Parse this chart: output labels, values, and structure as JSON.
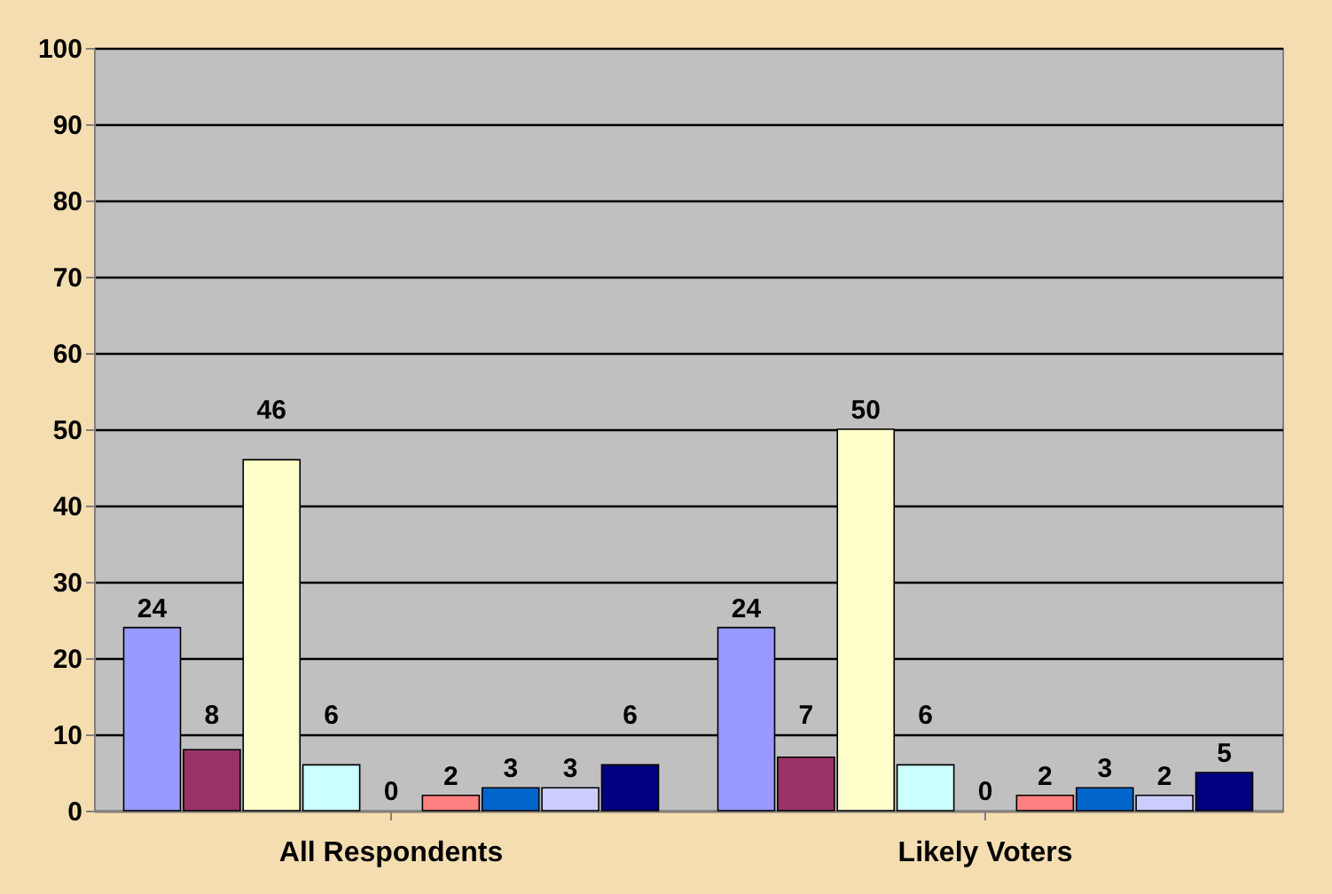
{
  "chart_data": {
    "type": "bar",
    "categories": [
      "All Respondents",
      "Likely Voters"
    ],
    "series": [
      {
        "color": "#9999ff",
        "values": [
          24,
          24
        ]
      },
      {
        "color": "#993366",
        "values": [
          8,
          7
        ]
      },
      {
        "color": "#ffffcc",
        "values": [
          46,
          50
        ]
      },
      {
        "color": "#ccffff",
        "values": [
          6,
          6
        ]
      },
      {
        "color": "#660066",
        "values": [
          0,
          0
        ]
      },
      {
        "color": "#ff8080",
        "values": [
          2,
          2
        ]
      },
      {
        "color": "#0066cc",
        "values": [
          3,
          3
        ]
      },
      {
        "color": "#ccccff",
        "values": [
          3,
          2
        ]
      },
      {
        "color": "#000080",
        "values": [
          6,
          5
        ]
      }
    ],
    "ylim": [
      0,
      100
    ],
    "yticks": [
      0,
      10,
      20,
      30,
      40,
      50,
      60,
      70,
      80,
      90,
      100
    ],
    "grid": "y",
    "data_labels": true
  }
}
